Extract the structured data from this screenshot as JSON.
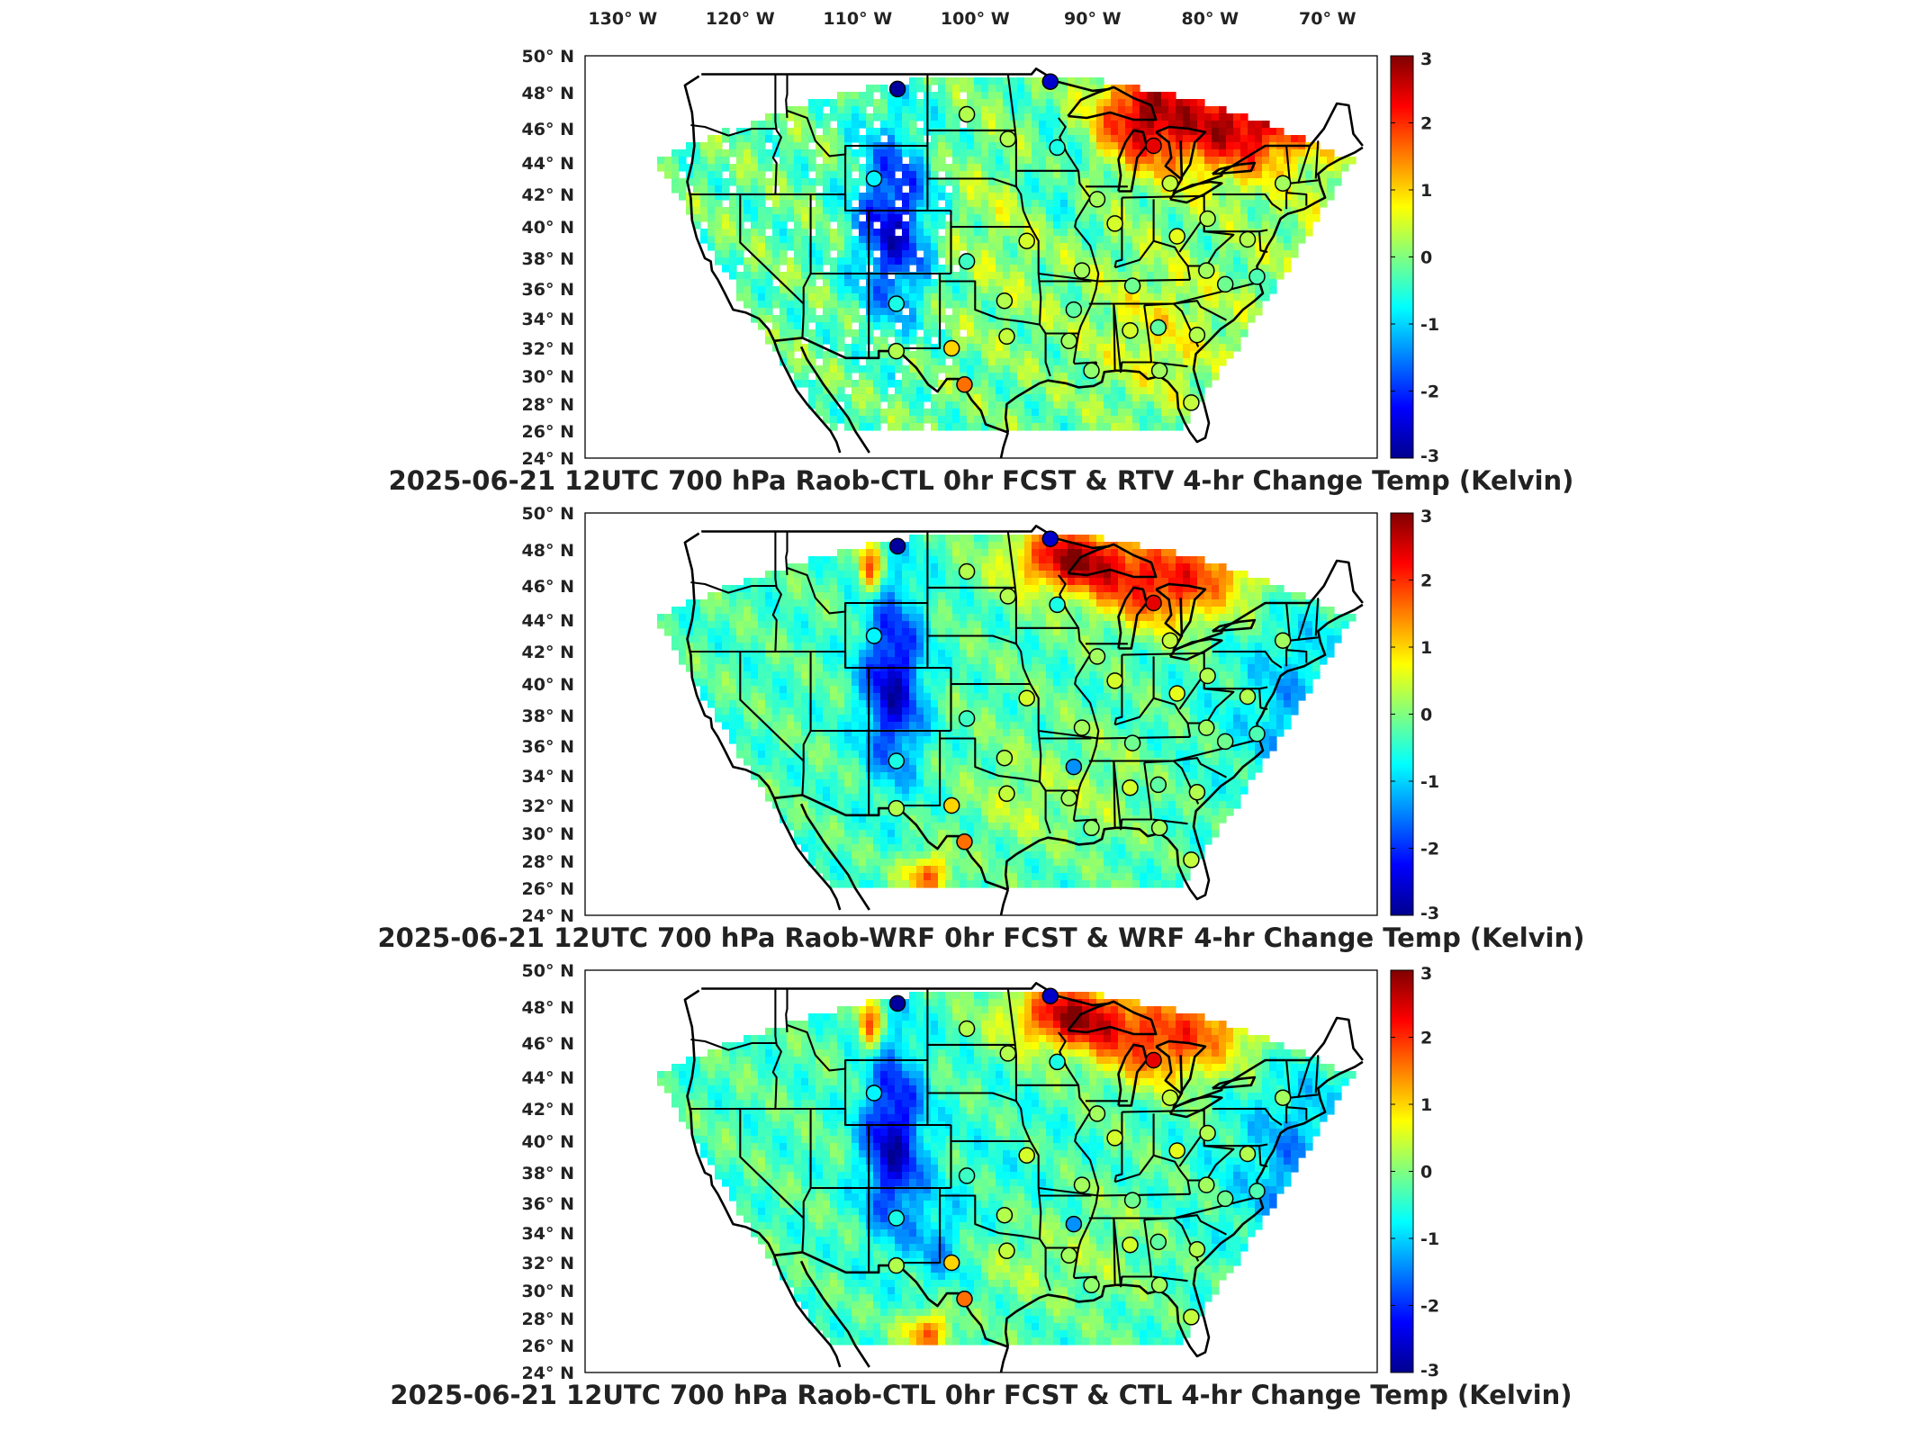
{
  "figure": {
    "lon_labels": [
      "130° W",
      "120° W",
      "110° W",
      "100° W",
      "90° W",
      "80° W",
      "70° W"
    ],
    "lat_labels": [
      "50° N",
      "48° N",
      "46° N",
      "44° N",
      "42° N",
      "40° N",
      "38° N",
      "36° N",
      "34° N",
      "32° N",
      "30° N",
      "28° N",
      "26° N",
      "24° N"
    ],
    "colorbar": {
      "min": -3,
      "max": 3,
      "ticks": [
        "3",
        "2",
        "1",
        "0",
        "-1",
        "-2",
        "-3"
      ],
      "colormap": "jet",
      "colors": [
        "#00008f",
        "#0000ff",
        "#00ffff",
        "#ffff00",
        "#ff0000",
        "#800000"
      ]
    },
    "land_color": "#ffffff",
    "border_color": "#000000"
  },
  "panels": [
    {
      "title": "2025-06-21 12UTC 700 hPa Raob-CTL 0hr FCST & RTV 4-hr Change Temp (Kelvin)",
      "field": "rtv",
      "stations": [
        {
          "lon": -106.6,
          "lat": 48.2,
          "value": -2.9
        },
        {
          "lon": -93.6,
          "lat": 48.6,
          "value": -2.6
        },
        {
          "lon": -100.7,
          "lat": 46.8,
          "value": 0.3
        },
        {
          "lon": -97.2,
          "lat": 45.4,
          "value": 0.3
        },
        {
          "lon": -93.0,
          "lat": 44.9,
          "value": -0.6
        },
        {
          "lon": -84.8,
          "lat": 45.0,
          "value": 2.4
        },
        {
          "lon": -108.6,
          "lat": 43.0,
          "value": -0.8
        },
        {
          "lon": -89.6,
          "lat": 41.7,
          "value": 0.2
        },
        {
          "lon": -83.4,
          "lat": 42.7,
          "value": 0.4
        },
        {
          "lon": -73.8,
          "lat": 42.7,
          "value": 0.2
        },
        {
          "lon": -88.1,
          "lat": 40.2,
          "value": 0.5
        },
        {
          "lon": -95.6,
          "lat": 39.1,
          "value": 0.5
        },
        {
          "lon": -82.8,
          "lat": 39.4,
          "value": 0.6
        },
        {
          "lon": -80.2,
          "lat": 40.5,
          "value": 0.3
        },
        {
          "lon": -76.8,
          "lat": 39.2,
          "value": 0.3
        },
        {
          "lon": -100.7,
          "lat": 37.8,
          "value": -0.4
        },
        {
          "lon": -90.9,
          "lat": 37.2,
          "value": 0.2
        },
        {
          "lon": -86.6,
          "lat": 36.2,
          "value": -0.1
        },
        {
          "lon": -78.7,
          "lat": 36.3,
          "value": -0.1
        },
        {
          "lon": -80.3,
          "lat": 37.2,
          "value": 0.2
        },
        {
          "lon": -106.7,
          "lat": 35.0,
          "value": -0.6
        },
        {
          "lon": -97.5,
          "lat": 35.2,
          "value": 0.3
        },
        {
          "lon": -91.6,
          "lat": 34.6,
          "value": -0.2
        },
        {
          "lon": -86.8,
          "lat": 33.2,
          "value": 0.5
        },
        {
          "lon": -84.4,
          "lat": 33.4,
          "value": -0.2
        },
        {
          "lon": -81.1,
          "lat": 32.9,
          "value": 0.3
        },
        {
          "lon": -97.3,
          "lat": 32.8,
          "value": 0.4
        },
        {
          "lon": -92.0,
          "lat": 32.5,
          "value": 0.2
        },
        {
          "lon": -106.7,
          "lat": 31.8,
          "value": 0.3
        },
        {
          "lon": -102.0,
          "lat": 32.0,
          "value": 1.0
        },
        {
          "lon": -90.1,
          "lat": 30.4,
          "value": 0.1
        },
        {
          "lon": -84.3,
          "lat": 30.4,
          "value": 0.2
        },
        {
          "lon": -100.9,
          "lat": 29.4,
          "value": 1.6
        },
        {
          "lon": -81.6,
          "lat": 28.1,
          "value": 0.4
        },
        {
          "lon": -76.0,
          "lat": 36.8,
          "value": -0.3
        }
      ]
    },
    {
      "title": "2025-06-21 12UTC 700 hPa Raob-WRF 0hr FCST & WRF 4-hr Change Temp (Kelvin)",
      "field": "wrf",
      "stations": [
        {
          "lon": -106.6,
          "lat": 48.2,
          "value": -2.9
        },
        {
          "lon": -93.6,
          "lat": 48.6,
          "value": -2.6
        },
        {
          "lon": -100.7,
          "lat": 46.8,
          "value": 0.3
        },
        {
          "lon": -97.2,
          "lat": 45.4,
          "value": 0.3
        },
        {
          "lon": -93.0,
          "lat": 44.9,
          "value": -0.6
        },
        {
          "lon": -84.8,
          "lat": 45.0,
          "value": 2.4
        },
        {
          "lon": -108.6,
          "lat": 43.0,
          "value": -0.8
        },
        {
          "lon": -89.6,
          "lat": 41.7,
          "value": 0.2
        },
        {
          "lon": -83.4,
          "lat": 42.7,
          "value": 0.4
        },
        {
          "lon": -73.8,
          "lat": 42.7,
          "value": 0.2
        },
        {
          "lon": -88.1,
          "lat": 40.2,
          "value": 0.5
        },
        {
          "lon": -95.6,
          "lat": 39.1,
          "value": 0.5
        },
        {
          "lon": -82.8,
          "lat": 39.4,
          "value": 0.6
        },
        {
          "lon": -80.2,
          "lat": 40.5,
          "value": 0.3
        },
        {
          "lon": -76.8,
          "lat": 39.2,
          "value": 0.3
        },
        {
          "lon": -100.7,
          "lat": 37.8,
          "value": -0.4
        },
        {
          "lon": -90.9,
          "lat": 37.2,
          "value": 0.2
        },
        {
          "lon": -86.6,
          "lat": 36.2,
          "value": -0.1
        },
        {
          "lon": -78.7,
          "lat": 36.3,
          "value": -0.1
        },
        {
          "lon": -80.3,
          "lat": 37.2,
          "value": 0.2
        },
        {
          "lon": -106.7,
          "lat": 35.0,
          "value": -0.6
        },
        {
          "lon": -97.5,
          "lat": 35.2,
          "value": 0.3
        },
        {
          "lon": -91.6,
          "lat": 34.6,
          "value": -1.4
        },
        {
          "lon": -86.8,
          "lat": 33.2,
          "value": 0.5
        },
        {
          "lon": -84.4,
          "lat": 33.4,
          "value": -0.2
        },
        {
          "lon": -81.1,
          "lat": 32.9,
          "value": 0.3
        },
        {
          "lon": -97.3,
          "lat": 32.8,
          "value": 0.4
        },
        {
          "lon": -92.0,
          "lat": 32.5,
          "value": 0.2
        },
        {
          "lon": -106.7,
          "lat": 31.8,
          "value": 0.3
        },
        {
          "lon": -102.0,
          "lat": 32.0,
          "value": 1.0
        },
        {
          "lon": -90.1,
          "lat": 30.4,
          "value": 0.1
        },
        {
          "lon": -84.3,
          "lat": 30.4,
          "value": 0.2
        },
        {
          "lon": -100.9,
          "lat": 29.4,
          "value": 1.6
        },
        {
          "lon": -81.6,
          "lat": 28.1,
          "value": 0.4
        },
        {
          "lon": -76.0,
          "lat": 36.8,
          "value": -0.3
        }
      ]
    },
    {
      "title": "2025-06-21 12UTC 700 hPa Raob-CTL 0hr FCST & CTL 4-hr Change Temp (Kelvin)",
      "field": "ctl",
      "stations": [
        {
          "lon": -106.6,
          "lat": 48.2,
          "value": -2.9
        },
        {
          "lon": -93.6,
          "lat": 48.6,
          "value": -2.6
        },
        {
          "lon": -100.7,
          "lat": 46.8,
          "value": 0.3
        },
        {
          "lon": -97.2,
          "lat": 45.4,
          "value": 0.3
        },
        {
          "lon": -93.0,
          "lat": 44.9,
          "value": -0.6
        },
        {
          "lon": -84.8,
          "lat": 45.0,
          "value": 2.4
        },
        {
          "lon": -108.6,
          "lat": 43.0,
          "value": -0.8
        },
        {
          "lon": -89.6,
          "lat": 41.7,
          "value": 0.2
        },
        {
          "lon": -83.4,
          "lat": 42.7,
          "value": 0.4
        },
        {
          "lon": -73.8,
          "lat": 42.7,
          "value": 0.2
        },
        {
          "lon": -88.1,
          "lat": 40.2,
          "value": 0.5
        },
        {
          "lon": -95.6,
          "lat": 39.1,
          "value": 0.5
        },
        {
          "lon": -82.8,
          "lat": 39.4,
          "value": 0.6
        },
        {
          "lon": -80.2,
          "lat": 40.5,
          "value": 0.3
        },
        {
          "lon": -76.8,
          "lat": 39.2,
          "value": 0.3
        },
        {
          "lon": -100.7,
          "lat": 37.8,
          "value": -0.4
        },
        {
          "lon": -90.9,
          "lat": 37.2,
          "value": 0.2
        },
        {
          "lon": -86.6,
          "lat": 36.2,
          "value": -0.1
        },
        {
          "lon": -78.7,
          "lat": 36.3,
          "value": -0.1
        },
        {
          "lon": -80.3,
          "lat": 37.2,
          "value": 0.2
        },
        {
          "lon": -106.7,
          "lat": 35.0,
          "value": -0.6
        },
        {
          "lon": -97.5,
          "lat": 35.2,
          "value": 0.3
        },
        {
          "lon": -91.6,
          "lat": 34.6,
          "value": -1.4
        },
        {
          "lon": -86.8,
          "lat": 33.2,
          "value": 0.5
        },
        {
          "lon": -84.4,
          "lat": 33.4,
          "value": -0.2
        },
        {
          "lon": -81.1,
          "lat": 32.9,
          "value": 0.3
        },
        {
          "lon": -97.3,
          "lat": 32.8,
          "value": 0.4
        },
        {
          "lon": -92.0,
          "lat": 32.5,
          "value": 0.2
        },
        {
          "lon": -106.7,
          "lat": 31.8,
          "value": 0.3
        },
        {
          "lon": -102.0,
          "lat": 32.0,
          "value": 1.0
        },
        {
          "lon": -90.1,
          "lat": 30.4,
          "value": 0.1
        },
        {
          "lon": -84.3,
          "lat": 30.4,
          "value": 0.2
        },
        {
          "lon": -100.9,
          "lat": 29.4,
          "value": 1.6
        },
        {
          "lon": -81.6,
          "lat": 28.1,
          "value": 0.4
        },
        {
          "lon": -76.0,
          "lat": 36.8,
          "value": -0.3
        }
      ]
    }
  ]
}
